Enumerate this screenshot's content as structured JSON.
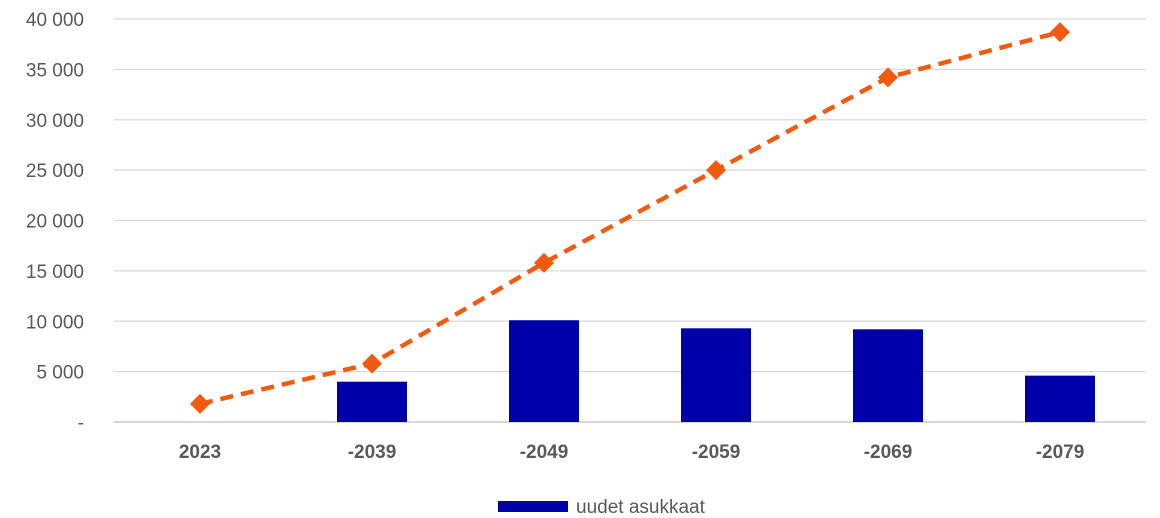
{
  "chart_data": {
    "type": "bar",
    "categories": [
      "2023",
      "-2039",
      "-2049",
      "-2059",
      "-2069",
      "-2079"
    ],
    "ylim": [
      0,
      40000
    ],
    "yticks": [
      {
        "value": 0,
        "label": "-"
      },
      {
        "value": 5000,
        "label": "5 000"
      },
      {
        "value": 10000,
        "label": "10 000"
      },
      {
        "value": 15000,
        "label": "15 000"
      },
      {
        "value": 20000,
        "label": "20 000"
      },
      {
        "value": 25000,
        "label": "25 000"
      },
      {
        "value": 30000,
        "label": "30 000"
      },
      {
        "value": 35000,
        "label": "35 000"
      },
      {
        "value": 40000,
        "label": "40 000"
      }
    ],
    "grid": true,
    "legend_position": "bottom",
    "series": [
      {
        "name": "uudet asukkaat",
        "type": "bar",
        "color": "#0000a8",
        "values": [
          0,
          4000,
          10100,
          9300,
          9200,
          4600
        ]
      },
      {
        "type": "line",
        "style": "dashed",
        "marker": "diamond",
        "color": "#f25a0f",
        "values": [
          1800,
          5800,
          15800,
          25000,
          34200,
          38700
        ]
      }
    ]
  }
}
